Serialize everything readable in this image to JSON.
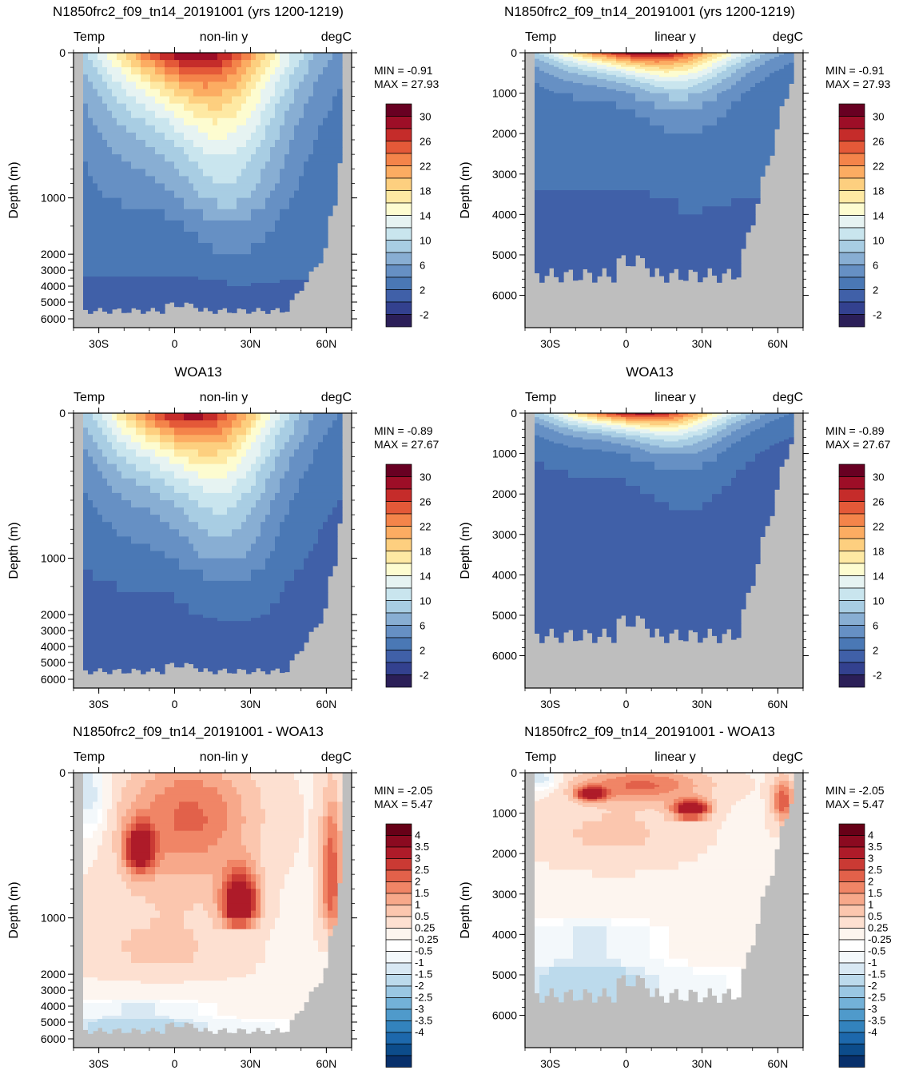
{
  "palette": {
    "temp": [
      "#2b1f58",
      "#33418f",
      "#4060a8",
      "#4a78b5",
      "#6690c4",
      "#88aed3",
      "#a8cde3",
      "#c9e5ee",
      "#e6f3f2",
      "#fdfcd0",
      "#fee9a3",
      "#fdcf7f",
      "#fcac62",
      "#f4844a",
      "#e45938",
      "#c52c2a",
      "#9d0e27",
      "#680022"
    ],
    "diff": [
      "#08306b",
      "#0c4c8b",
      "#1d68ac",
      "#3383bd",
      "#4f9acb",
      "#73b1d8",
      "#9ac7e3",
      "#bcdaec",
      "#d8e8f3",
      "#f3f8fb",
      "#ffffff",
      "#fdf5ef",
      "#fde0d1",
      "#fbc6ae",
      "#f7a88a",
      "#f08566",
      "#e2614a",
      "#ca3a34",
      "#ae1b29",
      "#8b0a20",
      "#670017"
    ],
    "land": "#bebebe"
  },
  "chart_data": [
    {
      "type": "contour",
      "field": "model",
      "title": "N1850frc2_f09_tn14_20191001 (yrs 1200-1219)",
      "left_label": "Temp",
      "center_label": "non-lin y",
      "right_label": "degC",
      "ylabel": "Depth (m)",
      "yscale": "nonlinear",
      "ylim": [
        0,
        6000
      ],
      "yticks": [
        "0",
        "1000",
        "2000",
        "3000",
        "4000",
        "5000",
        "6000"
      ],
      "xticks": [
        "30S",
        "0",
        "30N",
        "60N"
      ],
      "min_text": "MIN =  -0.91",
      "max_text": "MAX =  27.93",
      "colorbar_labels": [
        "30",
        "26",
        "22",
        "18",
        "14",
        "10",
        "6",
        "2",
        "-2"
      ]
    },
    {
      "type": "contour",
      "field": "model",
      "title": "N1850frc2_f09_tn14_20191001 (yrs 1200-1219)",
      "left_label": "Temp",
      "center_label": "linear y",
      "right_label": "degC",
      "ylabel": "Depth (m)",
      "yscale": "linear",
      "ylim": [
        0,
        6800
      ],
      "yticks": [
        "0",
        "1000",
        "2000",
        "3000",
        "4000",
        "5000",
        "6000"
      ],
      "xticks": [
        "30S",
        "0",
        "30N",
        "60N"
      ],
      "min_text": "MIN =  -0.91",
      "max_text": "MAX =  27.93",
      "colorbar_labels": [
        "30",
        "26",
        "22",
        "18",
        "14",
        "10",
        "6",
        "2",
        "-2"
      ]
    },
    {
      "type": "contour",
      "field": "obs",
      "title": "WOA13",
      "left_label": "Temp",
      "center_label": "non-lin y",
      "right_label": "degC",
      "ylabel": "Depth (m)",
      "yscale": "nonlinear",
      "ylim": [
        0,
        6000
      ],
      "yticks": [
        "0",
        "1000",
        "2000",
        "3000",
        "4000",
        "5000",
        "6000"
      ],
      "xticks": [
        "30S",
        "0",
        "30N",
        "60N"
      ],
      "min_text": "MIN =  -0.89",
      "max_text": "MAX =  27.67",
      "colorbar_labels": [
        "30",
        "26",
        "22",
        "18",
        "14",
        "10",
        "6",
        "2",
        "-2"
      ]
    },
    {
      "type": "contour",
      "field": "obs",
      "title": "WOA13",
      "left_label": "Temp",
      "center_label": "linear y",
      "right_label": "degC",
      "ylabel": "Depth (m)",
      "yscale": "linear",
      "ylim": [
        0,
        6800
      ],
      "yticks": [
        "0",
        "1000",
        "2000",
        "3000",
        "4000",
        "5000",
        "6000"
      ],
      "xticks": [
        "30S",
        "0",
        "30N",
        "60N"
      ],
      "min_text": "MIN =  -0.89",
      "max_text": "MAX =  27.67",
      "colorbar_labels": [
        "30",
        "26",
        "22",
        "18",
        "14",
        "10",
        "6",
        "2",
        "-2"
      ]
    },
    {
      "type": "contour",
      "field": "diff",
      "title": "N1850frc2_f09_tn14_20191001 - WOA13",
      "left_label": "Temp",
      "center_label": "non-lin y",
      "right_label": "degC",
      "ylabel": "Depth (m)",
      "yscale": "nonlinear",
      "ylim": [
        0,
        6000
      ],
      "yticks": [
        "0",
        "1000",
        "2000",
        "3000",
        "4000",
        "5000",
        "6000"
      ],
      "xticks": [
        "30S",
        "0",
        "30N",
        "60N"
      ],
      "min_text": "MIN =  -2.05",
      "max_text": "MAX =   5.47",
      "colorbar_labels": [
        "4",
        "3.5",
        "3",
        "2.5",
        "2",
        "1.5",
        "1",
        "0.5",
        "0.25",
        "-0.25",
        "-0.5",
        "-1",
        "-1.5",
        "-2",
        "-2.5",
        "-3",
        "-3.5",
        "-4"
      ]
    },
    {
      "type": "contour",
      "field": "diff",
      "title": "N1850frc2_f09_tn14_20191001 - WOA13",
      "left_label": "Temp",
      "center_label": "linear y",
      "right_label": "degC",
      "ylabel": "Depth (m)",
      "yscale": "linear",
      "ylim": [
        0,
        6800
      ],
      "yticks": [
        "0",
        "1000",
        "2000",
        "3000",
        "4000",
        "5000",
        "6000"
      ],
      "xticks": [
        "30S",
        "0",
        "30N",
        "60N"
      ],
      "min_text": "MIN =  -2.05",
      "max_text": "MAX =   5.47",
      "colorbar_labels": [
        "4",
        "3.5",
        "3",
        "2.5",
        "2",
        "1.5",
        "1",
        "0.5",
        "0.25",
        "-0.25",
        "-0.5",
        "-1",
        "-1.5",
        "-2",
        "-2.5",
        "-3",
        "-3.5",
        "-4"
      ]
    }
  ]
}
